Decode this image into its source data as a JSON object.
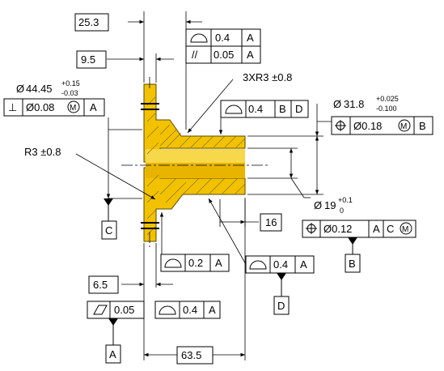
{
  "dims": {
    "d25_3": "25.3",
    "d9_5": "9.5",
    "d6_5": "6.5",
    "d16": "16",
    "d63_5": "63.5",
    "dia44": {
      "sym": "Ø",
      "val": "44.45",
      "upper": "+0.15",
      "lower": "-0.03"
    },
    "dia31": {
      "sym": "Ø",
      "val": "31.8",
      "upper": "+0.025",
      "lower": "-0.100"
    },
    "dia19": {
      "sym": "Ø",
      "val": "19",
      "upper": "+0.1",
      "lower": "0"
    },
    "r3x": "3XR3 ±0.8",
    "r3": "R3 ±0.8"
  },
  "fcf": {
    "profile_top": {
      "sym": "◠",
      "tol": "0.4",
      "datum": "A"
    },
    "parallel": {
      "sym": "//",
      "tol": "0.05",
      "datum": "A"
    },
    "perp": {
      "sym": "⊥",
      "tol": "Ø0.08",
      "mod": "M",
      "datum": "A"
    },
    "profile_bd": {
      "sym": "◠",
      "tol": "0.4",
      "d1": "B",
      "d2": "D"
    },
    "pos_b": {
      "sym": "⊕",
      "tol": "Ø0.18",
      "mod": "M",
      "datum": "B"
    },
    "pos_ac": {
      "sym": "⊕",
      "tol": "Ø0.12",
      "d1": "A",
      "d2": "C",
      "mod": "M"
    },
    "profile_mid": {
      "sym": "◠",
      "tol": "0.2",
      "datum": "A"
    },
    "profile_d": {
      "sym": "◠",
      "tol": "0.4",
      "datum": "A"
    },
    "flat": {
      "sym": "▱",
      "tol": "0.05"
    },
    "profile_bot": {
      "sym": "◠",
      "tol": "0.4",
      "datum": "A"
    }
  },
  "datums": {
    "a": "A",
    "b": "B",
    "c": "C",
    "d": "D"
  }
}
